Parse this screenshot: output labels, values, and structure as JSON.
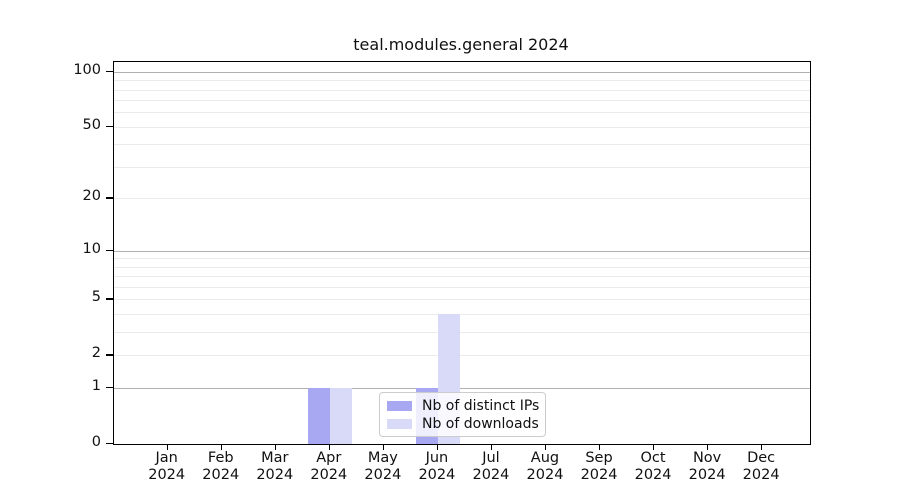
{
  "chart_data": {
    "type": "bar",
    "title": "teal.modules.general 2024",
    "x": {
      "categories": [
        "Jan",
        "Feb",
        "Mar",
        "Apr",
        "May",
        "Jun",
        "Jul",
        "Aug",
        "Sep",
        "Oct",
        "Nov",
        "Dec"
      ],
      "year_label": "2024"
    },
    "series": [
      {
        "name": "Nb of distinct IPs",
        "color": "#a8a8f2",
        "values": [
          0,
          0,
          0,
          1,
          0,
          1,
          0,
          0,
          0,
          0,
          0,
          0
        ]
      },
      {
        "name": "Nb of downloads",
        "color": "#d9d9f8",
        "values": [
          0,
          0,
          0,
          1,
          0,
          4,
          0,
          0,
          0,
          0,
          0,
          0
        ]
      }
    ],
    "y_axis": {
      "scale": "log10(value+1)",
      "tick_values": [
        0,
        1,
        2,
        5,
        10,
        20,
        50,
        100
      ],
      "max_value": 113,
      "major_gridline_values": [
        1,
        10,
        100
      ],
      "minor_gridline_values": [
        2,
        3,
        4,
        5,
        6,
        7,
        8,
        9,
        20,
        30,
        40,
        50,
        60,
        70,
        80,
        90
      ]
    },
    "legend": {
      "position": "lower center"
    },
    "grid": true
  },
  "style_colors": {
    "background": "#ffffff",
    "spine": "#000000",
    "major_grid": "#b0b0b0",
    "minor_grid": "#ebebeb",
    "legend_border": "#cccccc",
    "text": "#111111"
  }
}
